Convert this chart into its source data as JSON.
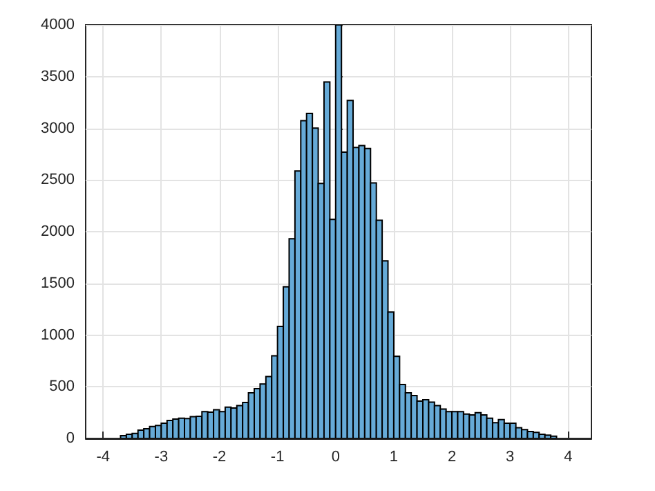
{
  "chart_data": {
    "type": "histogram",
    "color": "#66aad7",
    "bins": [
      -3.7,
      -3.6,
      -3.5,
      -3.4,
      -3.3,
      -3.2,
      -3.1,
      -3.0,
      -2.9,
      -2.8,
      -2.7,
      -2.6,
      -2.5,
      -2.4,
      -2.3,
      -2.2,
      -2.1,
      -2.0,
      -1.9,
      -1.8,
      -1.7,
      -1.6,
      -1.5,
      -1.4,
      -1.3,
      -1.2,
      -1.1,
      -1.0,
      -0.9,
      -0.8,
      -0.7,
      -0.6,
      -0.5,
      -0.4,
      -0.3,
      -0.2,
      -0.1,
      0,
      0.1,
      0.2,
      0.3,
      0.4,
      0.5,
      0.6,
      0.7,
      0.8,
      0.9,
      1.0,
      1.1,
      1.2,
      1.3,
      1.4,
      1.5,
      1.6,
      1.7,
      1.8,
      1.9,
      2.0,
      2.1,
      2.2,
      2.3,
      2.4,
      2.5,
      2.6,
      2.7,
      2.8,
      2.9,
      3.0,
      3.1,
      3.2,
      3.3,
      3.4,
      3.5,
      3.6,
      3.7,
      3.8
    ],
    "values": [
      27,
      40,
      49,
      80,
      94,
      116,
      125,
      147,
      174,
      187,
      196,
      192,
      210,
      214,
      259,
      254,
      277,
      259,
      303,
      294,
      317,
      348,
      442,
      482,
      526,
      598,
      799,
      1084,
      1467,
      1931,
      2587,
      3073,
      3144,
      3002,
      2466,
      3448,
      2118,
      4000,
      2770,
      3269,
      2814,
      2832,
      2805,
      2471,
      2110,
      1717,
      1222,
      794,
      522,
      441,
      415,
      361,
      375,
      352,
      317,
      285,
      259,
      259,
      259,
      236,
      227,
      250,
      227,
      196,
      152,
      183,
      147,
      147,
      103,
      85,
      67,
      58,
      40,
      31,
      22
    ],
    "xlim": [
      -4.3,
      4.4
    ],
    "xticks": [
      -4,
      -3,
      -2,
      -1,
      0,
      1,
      2,
      3,
      4
    ],
    "ylim": [
      0,
      4000
    ],
    "yticks": [
      0,
      500,
      1000,
      1500,
      2000,
      2500,
      3000,
      3500,
      4000
    ],
    "grid": true
  }
}
